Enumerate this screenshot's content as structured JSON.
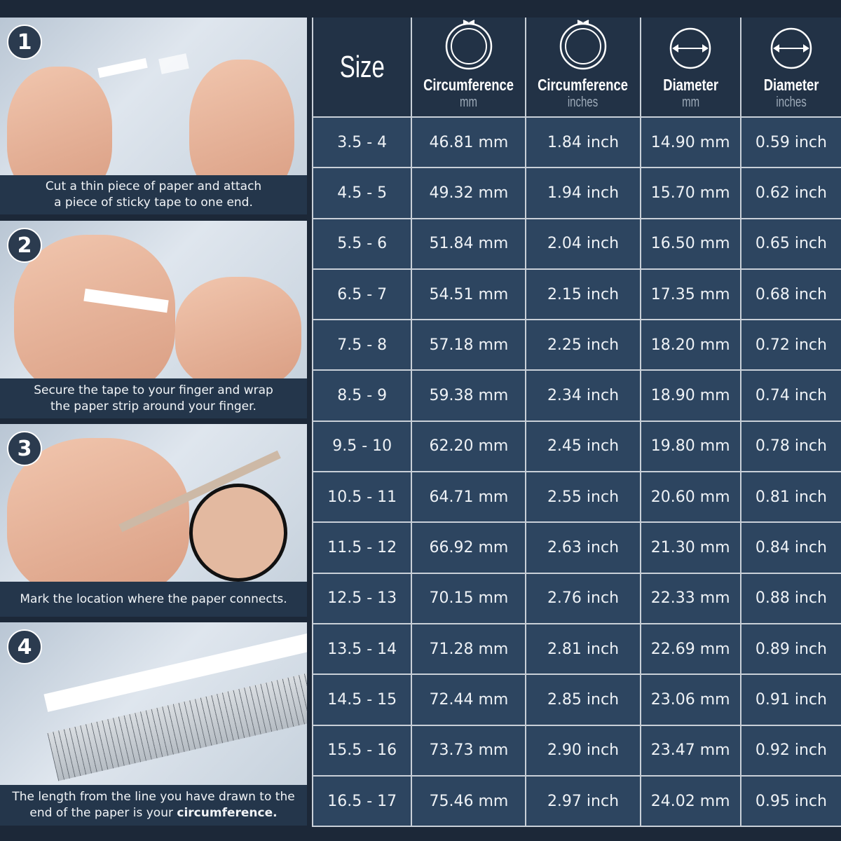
{
  "steps": [
    {
      "number": "1",
      "caption_line1": "Cut a thin piece of paper and attach",
      "caption_line2": "a piece of sticky tape to one end."
    },
    {
      "number": "2",
      "caption_line1": "Secure the tape to your finger and wrap",
      "caption_line2": "the paper strip around your finger."
    },
    {
      "number": "3",
      "caption_line1": "Mark the location where the paper connects.",
      "caption_line2": ""
    },
    {
      "number": "4",
      "caption_line1": "The length from the line you have drawn to the",
      "caption_line2": "end of the paper is your ",
      "caption_bold": "circumference."
    }
  ],
  "table": {
    "headers": [
      {
        "title": "Size",
        "unit": "",
        "icon": "none"
      },
      {
        "title": "Circumference",
        "unit": "mm",
        "icon": "ring-circumference-icon"
      },
      {
        "title": "Circumference",
        "unit": "inches",
        "icon": "ring-circumference-icon"
      },
      {
        "title": "Diameter",
        "unit": "mm",
        "icon": "diameter-icon"
      },
      {
        "title": "Diameter",
        "unit": "inches",
        "icon": "diameter-icon"
      }
    ],
    "rows": [
      [
        "3.5 - 4",
        "46.81 mm",
        "1.84 inch",
        "14.90 mm",
        "0.59 inch"
      ],
      [
        "4.5 - 5",
        "49.32 mm",
        "1.94 inch",
        "15.70 mm",
        "0.62 inch"
      ],
      [
        "5.5 - 6",
        "51.84 mm",
        "2.04 inch",
        "16.50 mm",
        "0.65 inch"
      ],
      [
        "6.5 - 7",
        "54.51 mm",
        "2.15 inch",
        "17.35 mm",
        "0.68 inch"
      ],
      [
        "7.5 - 8",
        "57.18 mm",
        "2.25 inch",
        "18.20 mm",
        "0.72 inch"
      ],
      [
        "8.5 - 9",
        "59.38 mm",
        "2.34 inch",
        "18.90 mm",
        "0.74 inch"
      ],
      [
        "9.5 - 10",
        "62.20 mm",
        "2.45 inch",
        "19.80 mm",
        "0.78 inch"
      ],
      [
        "10.5 - 11",
        "64.71 mm",
        "2.55 inch",
        "20.60 mm",
        "0.81 inch"
      ],
      [
        "11.5 - 12",
        "66.92 mm",
        "2.63 inch",
        "21.30 mm",
        "0.84 inch"
      ],
      [
        "12.5 - 13",
        "70.15 mm",
        "2.76 inch",
        "22.33 mm",
        "0.88 inch"
      ],
      [
        "13.5 - 14",
        "71.28 mm",
        "2.81 inch",
        "22.69 mm",
        "0.89 inch"
      ],
      [
        "14.5 - 15",
        "72.44 mm",
        "2.85 inch",
        "23.06 mm",
        "0.91 inch"
      ],
      [
        "15.5 - 16",
        "73.73 mm",
        "2.90 inch",
        "23.47 mm",
        "0.92 inch"
      ],
      [
        "16.5 - 17",
        "75.46 mm",
        "2.97 inch",
        "24.02 mm",
        "0.95 inch"
      ]
    ]
  },
  "colors": {
    "background": "#1c2838",
    "header_cell": "#223246",
    "body_cell": "#2d4560",
    "caption_bar": "#24364b",
    "grid_line": "#c9d0d8"
  }
}
